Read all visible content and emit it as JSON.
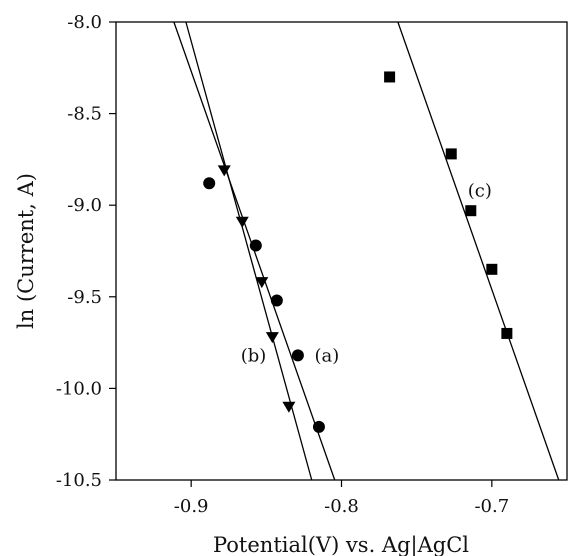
{
  "chart_data": {
    "type": "scatter",
    "xlabel": "Potential(V) vs. Ag|AgCl",
    "ylabel": "ln (Current, A)",
    "xlim": [
      -0.95,
      -0.65
    ],
    "ylim": [
      -10.5,
      -8.0
    ],
    "x_ticks": [
      -0.9,
      -0.8,
      -0.7
    ],
    "x_tick_labels": [
      "-0.9",
      "-0.8",
      "-0.7"
    ],
    "y_ticks": [
      -8.0,
      -8.5,
      -9.0,
      -9.5,
      -10.0,
      -10.5
    ],
    "y_tick_labels": [
      "-8.0",
      "-8.5",
      "-9.0",
      "-9.5",
      "-10.0",
      "-10.5"
    ],
    "grid": false,
    "series": [
      {
        "marker": "circle",
        "color": "#000000",
        "points": [
          {
            "x": -0.888,
            "y": -8.88
          },
          {
            "x": -0.857,
            "y": -9.22
          },
          {
            "x": -0.843,
            "y": -9.52
          },
          {
            "x": -0.829,
            "y": -9.82
          },
          {
            "x": -0.815,
            "y": -10.21
          }
        ],
        "fit": {
          "x1": -0.9115,
          "y1": -8.0,
          "x2": -0.8045,
          "y2": -10.5
        }
      },
      {
        "marker": "triangle-down",
        "color": "#000000",
        "points": [
          {
            "x": -0.878,
            "y": -8.81
          },
          {
            "x": -0.866,
            "y": -9.09
          },
          {
            "x": -0.853,
            "y": -9.42
          },
          {
            "x": -0.846,
            "y": -9.72
          },
          {
            "x": -0.835,
            "y": -10.1
          }
        ],
        "fit": {
          "x1": -0.9035,
          "y1": -8.0,
          "x2": -0.8198,
          "y2": -10.5
        }
      },
      {
        "marker": "square",
        "color": "#000000",
        "points": [
          {
            "x": -0.768,
            "y": -8.3
          },
          {
            "x": -0.727,
            "y": -8.72
          },
          {
            "x": -0.714,
            "y": -9.03
          },
          {
            "x": -0.7,
            "y": -9.35
          },
          {
            "x": -0.69,
            "y": -9.7
          }
        ],
        "fit": {
          "x1": -0.7625,
          "y1": -8.0,
          "x2": -0.6555,
          "y2": -10.5
        }
      }
    ],
    "annotations": [
      {
        "text": "(a)",
        "x": -0.818,
        "y": -9.82
      },
      {
        "text": "(b)",
        "x": -0.867,
        "y": -9.82
      },
      {
        "text": "(c)",
        "x": -0.716,
        "y": -8.92
      }
    ]
  }
}
